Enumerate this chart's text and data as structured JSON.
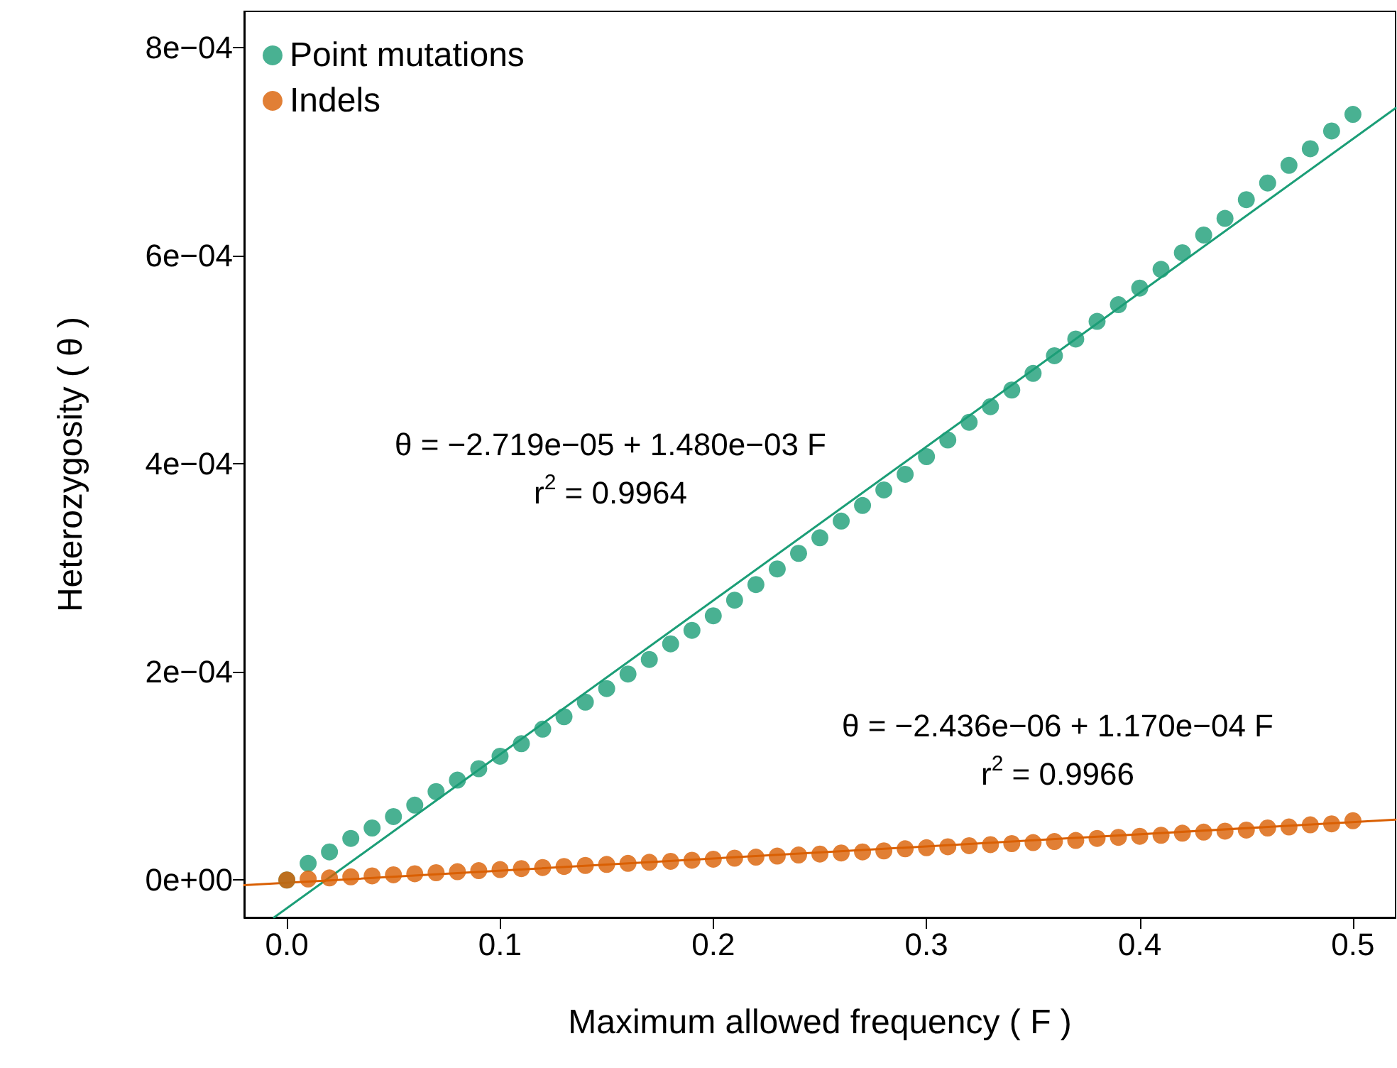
{
  "chart_data": {
    "type": "scatter",
    "xlabel": "Maximum allowed frequency ( F )",
    "ylabel": "Heterozygosity ( θ )",
    "x": [
      0,
      0.01,
      0.02,
      0.03,
      0.04,
      0.05,
      0.06,
      0.07,
      0.08,
      0.09,
      0.1,
      0.11,
      0.12,
      0.13,
      0.14,
      0.15,
      0.16,
      0.17,
      0.18,
      0.19,
      0.2,
      0.21,
      0.22,
      0.23,
      0.24,
      0.25,
      0.26,
      0.27,
      0.28,
      0.29,
      0.3,
      0.31,
      0.32,
      0.33,
      0.34,
      0.35,
      0.36,
      0.37,
      0.38,
      0.39,
      0.4,
      0.41,
      0.42,
      0.43,
      0.44,
      0.45,
      0.46,
      0.47,
      0.48,
      0.49,
      0.5
    ],
    "series": [
      {
        "name": "Point mutations",
        "color": "#1b9e77",
        "values": [
          0,
          1.6e-05,
          2.7e-05,
          4e-05,
          5e-05,
          6.1e-05,
          7.2e-05,
          8.5e-05,
          9.6e-05,
          0.000107,
          0.000119,
          0.000131,
          0.000145,
          0.000157,
          0.000171,
          0.000184,
          0.000198,
          0.000212,
          0.000227,
          0.00024,
          0.000254,
          0.000269,
          0.000284,
          0.000299,
          0.000314,
          0.000329,
          0.000345,
          0.00036,
          0.000375,
          0.00039,
          0.000407,
          0.000423,
          0.00044,
          0.000455,
          0.000471,
          0.000487,
          0.000504,
          0.00052,
          0.000537,
          0.000553,
          0.000569,
          0.000587,
          0.000603,
          0.00062,
          0.000636,
          0.000654,
          0.00067,
          0.000687,
          0.000703,
          0.00072,
          0.000736
        ]
      },
      {
        "name": "Indels",
        "color": "#d95f02",
        "values": [
          0,
          1e-06,
          2e-06,
          3e-06,
          4e-06,
          5e-06,
          6e-06,
          7e-06,
          8e-06,
          9e-06,
          1e-05,
          1.1e-05,
          1.2e-05,
          1.3e-05,
          1.4e-05,
          1.5e-05,
          1.6e-05,
          1.7e-05,
          1.8e-05,
          1.9e-05,
          2e-05,
          2.1e-05,
          2.2e-05,
          2.3e-05,
          2.4e-05,
          2.5e-05,
          2.6e-05,
          2.7e-05,
          2.8e-05,
          3e-05,
          3.1e-05,
          3.2e-05,
          3.3e-05,
          3.4e-05,
          3.5e-05,
          3.6e-05,
          3.7e-05,
          3.8e-05,
          4e-05,
          4.1e-05,
          4.2e-05,
          4.3e-05,
          4.5e-05,
          4.6e-05,
          4.7e-05,
          4.8e-05,
          5e-05,
          5.1e-05,
          5.3e-05,
          5.4e-05,
          5.7e-05
        ]
      },
      {
        "type": "line",
        "color": "#1b9e77",
        "marker": "none",
        "x": [
          -0.006,
          0.52
        ],
        "values": [
          -3.6e-05,
          0.000742
        ]
      },
      {
        "type": "line",
        "color": "#d95f02",
        "marker": "none",
        "x": [
          -0.02,
          0.52
        ],
        "values": [
          -5e-06,
          5.8e-05
        ]
      }
    ],
    "xlim": [
      -0.02,
      0.52
    ],
    "ylim": [
      -3.6e-05,
      0.000835
    ],
    "xticks": [
      {
        "value": 0,
        "label": "0.0"
      },
      {
        "value": 0.1,
        "label": "0.1"
      },
      {
        "value": 0.2,
        "label": "0.2"
      },
      {
        "value": 0.3,
        "label": "0.3"
      },
      {
        "value": 0.4,
        "label": "0.4"
      },
      {
        "value": 0.5,
        "label": "0.5"
      }
    ],
    "yticks": [
      {
        "value": 0,
        "label": "0e+00"
      },
      {
        "value": 0.0002,
        "label": "2e−04"
      },
      {
        "value": 0.0004,
        "label": "4e−04"
      },
      {
        "value": 0.0006,
        "label": "6e−04"
      },
      {
        "value": 0.0008,
        "label": "8e−04"
      }
    ],
    "annotations": [
      "θ = −2.719e−05 + 1.480e−03 F",
      "r$^{2}$ = 0.9964",
      "θ = −2.436e−06 + 1.170e−04 F",
      "r$^{2}$ = 0.9966"
    ],
    "grid": false,
    "legend": "top left",
    "marker": "circle",
    "line_style": "solid"
  }
}
